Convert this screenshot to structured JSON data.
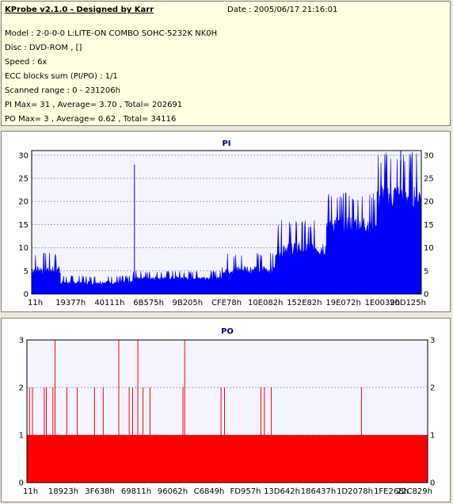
{
  "header": {
    "title": "KProbe v2.1.0 - Designed by Karr",
    "date": "Date : 2005/06/17 21:16:01",
    "lines": [
      "Model : 2-0-0-0 L:LITE-ON COMBO SOHC-5232K NK0H",
      "Disc : DVD-ROM ,  []",
      "Speed : 6x",
      "ECC blocks sum (PI/PO) : 1/1",
      "Scanned range : 0 - 231206h",
      "PI Max= 31 , Average= 3.70 , Total= 202691",
      "PO Max= 3 , Average= 0.62 , Total= 34116"
    ]
  },
  "colors": {
    "pi": "#0000ff",
    "po": "#ff0000",
    "title": "#000080",
    "grid": "#a0a0c0"
  },
  "chart_data": [
    {
      "type": "area",
      "title": "PI",
      "ylim": [
        0,
        31
      ],
      "yticks": [
        0,
        5,
        10,
        15,
        20,
        25,
        30
      ],
      "xlim": [
        0,
        231206
      ],
      "xtick_labels": [
        "11h",
        "19377h",
        "40111h",
        "6B575h",
        "9B205h",
        "CFE78h",
        "10E082h",
        "152E82h",
        "19E072h",
        "1E0039h",
        "20D125h"
      ],
      "grid": true,
      "series": [
        {
          "segments": [
            {
              "x": [
                0,
                17000
              ],
              "base": 4,
              "peak": 9
            },
            {
              "x": [
                17000,
                60000
              ],
              "base": 2,
              "peak": 4
            },
            {
              "x": [
                60000,
                113000
              ],
              "base": 3,
              "peak": 5
            },
            {
              "x": [
                113000,
                145000
              ],
              "base": 4,
              "peak": 9
            },
            {
              "x": [
                145000,
                175000
              ],
              "base": 8,
              "peak": 16
            },
            {
              "x": [
                175000,
                205000
              ],
              "base": 13,
              "peak": 22
            },
            {
              "x": [
                205000,
                231206
              ],
              "base": 18,
              "peak": 31
            }
          ],
          "spikes": [
            {
              "x": 61000,
              "y": 28
            },
            {
              "x": 219000,
              "y": 31
            }
          ]
        }
      ]
    },
    {
      "type": "bar",
      "title": "PO",
      "ylim": [
        0,
        3
      ],
      "yticks": [
        0,
        1,
        2,
        3
      ],
      "xlim": [
        0,
        231206
      ],
      "xtick_labels": [
        "11h",
        "18923h",
        "3F638h",
        "69811h",
        "96062h",
        "C6849h",
        "FD957h",
        "13D642h",
        "186437h",
        "1D2078h",
        "1FE268h",
        "22C829h"
      ],
      "grid": true,
      "series": [
        {
          "baseline": 1,
          "spikes": [
            {
              "x": 1500,
              "y": 2
            },
            {
              "x": 3200,
              "y": 2
            },
            {
              "x": 10000,
              "y": 2
            },
            {
              "x": 11200,
              "y": 2
            },
            {
              "x": 15000,
              "y": 2
            },
            {
              "x": 16200,
              "y": 3
            },
            {
              "x": 23000,
              "y": 2
            },
            {
              "x": 29000,
              "y": 2
            },
            {
              "x": 39000,
              "y": 2
            },
            {
              "x": 44000,
              "y": 2
            },
            {
              "x": 53000,
              "y": 3
            },
            {
              "x": 59000,
              "y": 2
            },
            {
              "x": 61000,
              "y": 2
            },
            {
              "x": 64000,
              "y": 3
            },
            {
              "x": 67000,
              "y": 2
            },
            {
              "x": 71000,
              "y": 2
            },
            {
              "x": 90000,
              "y": 2
            },
            {
              "x": 91000,
              "y": 3
            },
            {
              "x": 112000,
              "y": 2
            },
            {
              "x": 114000,
              "y": 2
            },
            {
              "x": 135000,
              "y": 2
            },
            {
              "x": 137000,
              "y": 2
            },
            {
              "x": 141000,
              "y": 2
            },
            {
              "x": 193000,
              "y": 2
            }
          ]
        }
      ]
    }
  ]
}
